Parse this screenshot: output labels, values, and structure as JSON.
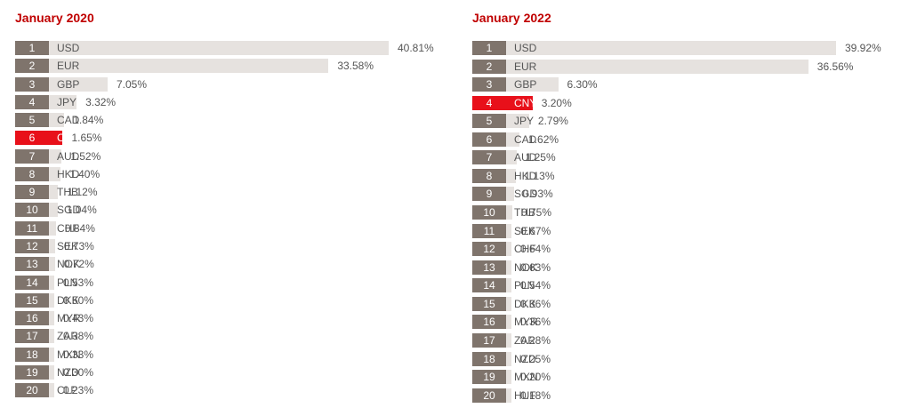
{
  "chart_data": [
    {
      "type": "bar",
      "orientation": "horizontal",
      "title": "January 2020",
      "highlight": "CNY",
      "highlight_color": "#e8101a",
      "bar_color": "#e6e2df",
      "rank_color": "#7f746c",
      "max": 40.81,
      "rows": [
        {
          "rank": "1",
          "code": "USD",
          "value": 40.81,
          "label": "40.81%"
        },
        {
          "rank": "2",
          "code": "EUR",
          "value": 33.58,
          "label": "33.58%"
        },
        {
          "rank": "3",
          "code": "GBP",
          "value": 7.05,
          "label": "7.05%"
        },
        {
          "rank": "4",
          "code": "JPY",
          "value": 3.32,
          "label": "3.32%"
        },
        {
          "rank": "5",
          "code": "CAD",
          "value": 1.84,
          "label": "1.84%"
        },
        {
          "rank": "6",
          "code": "CNY",
          "value": 1.65,
          "label": "1.65%"
        },
        {
          "rank": "7",
          "code": "AUD",
          "value": 1.52,
          "label": "1.52%"
        },
        {
          "rank": "8",
          "code": "HKD",
          "value": 1.4,
          "label": "1.40%"
        },
        {
          "rank": "9",
          "code": "THB",
          "value": 1.12,
          "label": "1.12%"
        },
        {
          "rank": "10",
          "code": "SGD",
          "value": 1.04,
          "label": "1.04%"
        },
        {
          "rank": "11",
          "code": "CHF",
          "value": 0.84,
          "label": "0.84%"
        },
        {
          "rank": "12",
          "code": "SEK",
          "value": 0.73,
          "label": "0.73%"
        },
        {
          "rank": "13",
          "code": "NOK",
          "value": 0.72,
          "label": "0.72%"
        },
        {
          "rank": "14",
          "code": "PLN",
          "value": 0.53,
          "label": "0.53%"
        },
        {
          "rank": "15",
          "code": "DKK",
          "value": 0.5,
          "label": "0.50%"
        },
        {
          "rank": "16",
          "code": "MYR",
          "value": 0.43,
          "label": "0.43%"
        },
        {
          "rank": "17",
          "code": "ZAR",
          "value": 0.38,
          "label": "0.38%"
        },
        {
          "rank": "18",
          "code": "MXN",
          "value": 0.33,
          "label": "0.33%"
        },
        {
          "rank": "19",
          "code": "NZD",
          "value": 0.3,
          "label": "0.30%"
        },
        {
          "rank": "20",
          "code": "CLP",
          "value": 0.23,
          "label": "0.23%"
        }
      ]
    },
    {
      "type": "bar",
      "orientation": "horizontal",
      "title": "January 2022",
      "highlight": "CNY",
      "highlight_color": "#e8101a",
      "bar_color": "#e6e2df",
      "rank_color": "#7f746c",
      "max": 39.92,
      "rows": [
        {
          "rank": "1",
          "code": "USD",
          "value": 39.92,
          "label": "39.92%"
        },
        {
          "rank": "2",
          "code": "EUR",
          "value": 36.56,
          "label": "36.56%"
        },
        {
          "rank": "3",
          "code": "GBP",
          "value": 6.3,
          "label": "6.30%"
        },
        {
          "rank": "4",
          "code": "CNY",
          "value": 3.2,
          "label": "3.20%"
        },
        {
          "rank": "5",
          "code": "JPY",
          "value": 2.79,
          "label": "2.79%"
        },
        {
          "rank": "6",
          "code": "CAD",
          "value": 1.62,
          "label": "1.62%"
        },
        {
          "rank": "7",
          "code": "AUD",
          "value": 1.25,
          "label": "1.25%"
        },
        {
          "rank": "8",
          "code": "HKD",
          "value": 1.13,
          "label": "1.13%"
        },
        {
          "rank": "9",
          "code": "SGD",
          "value": 0.93,
          "label": "0.93%"
        },
        {
          "rank": "10",
          "code": "THB",
          "value": 0.75,
          "label": "0.75%"
        },
        {
          "rank": "11",
          "code": "SEK",
          "value": 0.67,
          "label": "0.67%"
        },
        {
          "rank": "12",
          "code": "CHF",
          "value": 0.64,
          "label": "0.64%"
        },
        {
          "rank": "13",
          "code": "NOK",
          "value": 0.63,
          "label": "0.63%"
        },
        {
          "rank": "14",
          "code": "PLN",
          "value": 0.54,
          "label": "0.54%"
        },
        {
          "rank": "15",
          "code": "DKK",
          "value": 0.36,
          "label": "0.36%"
        },
        {
          "rank": "16",
          "code": "MYR",
          "value": 0.36,
          "label": "0.36%"
        },
        {
          "rank": "17",
          "code": "ZAR",
          "value": 0.28,
          "label": "0.28%"
        },
        {
          "rank": "18",
          "code": "NZD",
          "value": 0.25,
          "label": "0.25%"
        },
        {
          "rank": "19",
          "code": "MXN",
          "value": 0.2,
          "label": "0.20%"
        },
        {
          "rank": "20",
          "code": "HUF",
          "value": 0.18,
          "label": "0.18%"
        }
      ]
    }
  ]
}
